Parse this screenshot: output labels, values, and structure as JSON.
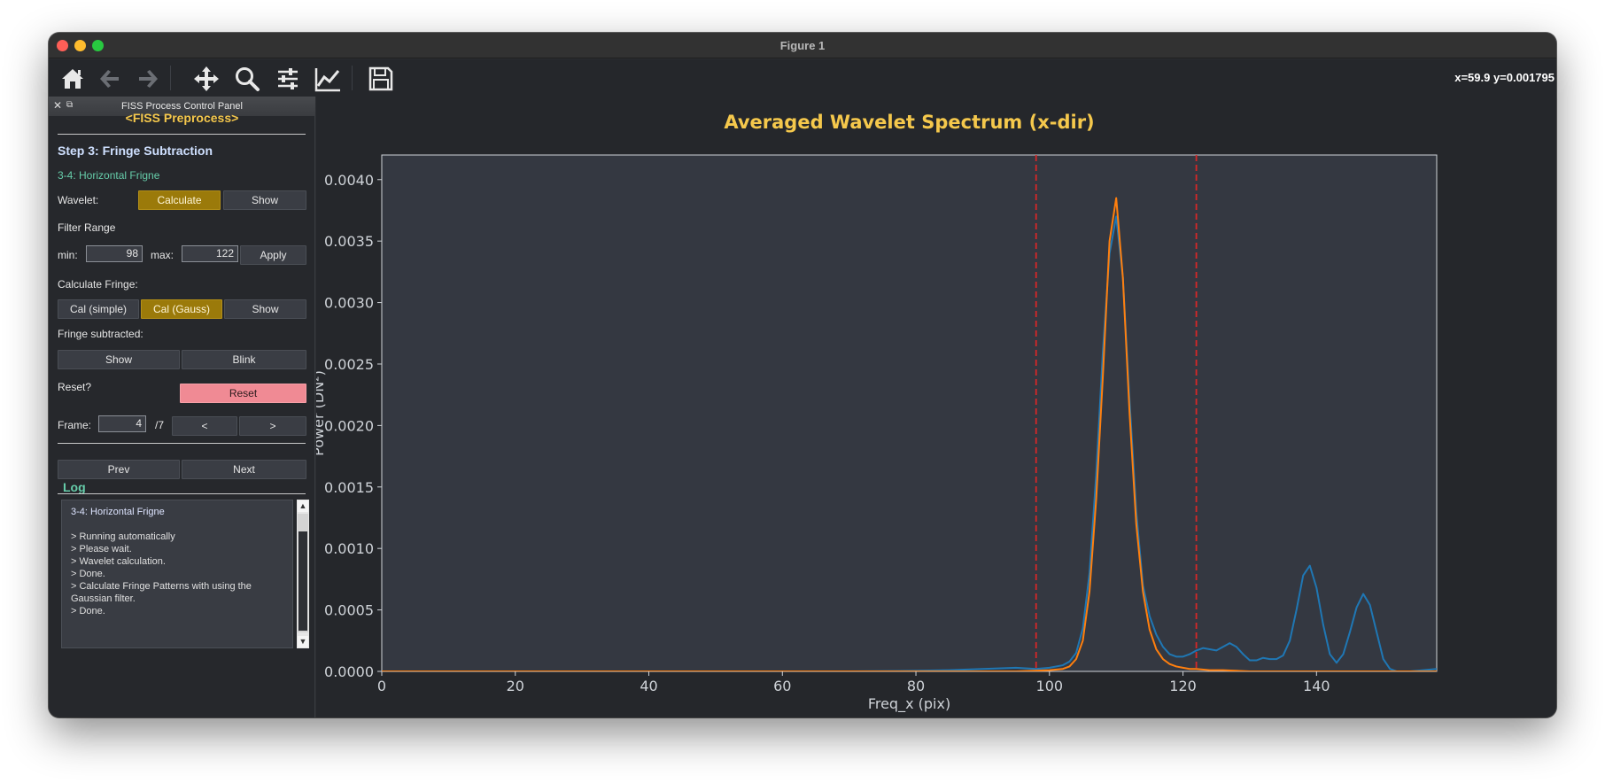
{
  "window": {
    "title": "Figure 1"
  },
  "toolbar": {
    "buttons": [
      {
        "id": "home",
        "icon": "home-icon"
      },
      {
        "id": "back",
        "icon": "arrow-left-icon"
      },
      {
        "id": "forward",
        "icon": "arrow-right-icon"
      },
      {
        "id": "pan",
        "icon": "move-icon"
      },
      {
        "id": "zoom",
        "icon": "search-icon"
      },
      {
        "id": "configure",
        "icon": "sliders-icon"
      },
      {
        "id": "edit",
        "icon": "line-chart-icon"
      },
      {
        "id": "save",
        "icon": "floppy-disk-icon"
      }
    ],
    "coords": "x=59.9 y=0.001795"
  },
  "panel": {
    "title": "FISS Process Control Panel",
    "close_glyph": "✕",
    "float_glyph": "⧉",
    "header": "<FISS Preprocess>",
    "step": "Step 3: Fringe Subtraction",
    "substep": "3-4: Horizontal Frigne",
    "wavelet_label": "Wavelet:",
    "wavelet_calculate": "Calculate",
    "wavelet_show": "Show",
    "filter_range_label": "Filter Range",
    "min_label": "min:",
    "min_value": "98",
    "max_label": "max:",
    "max_value": "122",
    "apply": "Apply",
    "calc_fringe_label": "Calculate Fringe:",
    "cal_simple": "Cal (simple)",
    "cal_gauss": "Cal (Gauss)",
    "fringe_show": "Show",
    "fringe_sub_label": "Fringe subtracted:",
    "sub_show": "Show",
    "sub_blink": "Blink",
    "reset_label": "Reset?",
    "reset": "Reset",
    "frame_label": "Frame:",
    "frame_value": "4",
    "frame_total": "/7",
    "frame_prev": "<",
    "frame_next": ">",
    "prev": "Prev",
    "next": "Next",
    "log_title": "Log",
    "log_lines": [
      "3-4: Horizontal Frigne",
      "",
      "> Running automatically",
      "> Please wait.",
      "> Wavelet calculation.",
      "> Done.",
      "> Calculate Fringe Patterns with using the Gaussian filter.",
      "> Done."
    ],
    "scroll_up": "▲",
    "scroll_down": "▼"
  },
  "colors": {
    "title": "#f5c84c",
    "series_blue": "#1f77b4",
    "series_orange": "#ff7f0e",
    "vline": "#d62728",
    "accent_green": "#66cdaa",
    "button_gold": "#9b7a0a",
    "button_pink": "#f08a94"
  },
  "chart_data": {
    "type": "line",
    "title": "Averaged Wavelet Spectrum (x-dir)",
    "xlabel": "Freq_x (pix)",
    "ylabel": "Power (DN²)",
    "xlim": [
      0,
      158
    ],
    "ylim": [
      0,
      0.0042
    ],
    "xticks": [
      0,
      20,
      40,
      60,
      80,
      100,
      120,
      140
    ],
    "yticks": [
      0.0,
      0.0005,
      0.001,
      0.0015,
      0.002,
      0.0025,
      0.003,
      0.0035,
      0.004
    ],
    "ytick_labels": [
      "0.0000",
      "0.0005",
      "0.0010",
      "0.0015",
      "0.0020",
      "0.0025",
      "0.0030",
      "0.0035",
      "0.0040"
    ],
    "vlines": [
      98,
      122
    ],
    "series": [
      {
        "color": "blue",
        "x": [
          0,
          70,
          80,
          85,
          90,
          95,
          98,
          100,
          102,
          103,
          104,
          105,
          106,
          107,
          108,
          109,
          110,
          111,
          112,
          113,
          114,
          115,
          116,
          117,
          118,
          119,
          120,
          121,
          122,
          123,
          124,
          125,
          126,
          127,
          128,
          129,
          130,
          131,
          132,
          133,
          134,
          135,
          136,
          137,
          138,
          139,
          140,
          141,
          142,
          143,
          144,
          145,
          146,
          147,
          148,
          149,
          150,
          151,
          152,
          154,
          156,
          158
        ],
        "y": [
          0.0,
          0.0,
          5e-06,
          1e-05,
          2e-05,
          3e-05,
          2e-05,
          3e-05,
          5e-05,
          8e-05,
          0.00015,
          0.00035,
          0.0008,
          0.0016,
          0.0026,
          0.0034,
          0.0037,
          0.0032,
          0.0022,
          0.0013,
          0.0007,
          0.00045,
          0.0003,
          0.0002,
          0.00014,
          0.00012,
          0.00012,
          0.00014,
          0.00017,
          0.00019,
          0.00018,
          0.00017,
          0.0002,
          0.00023,
          0.0002,
          0.00014,
          9e-05,
          9e-05,
          0.00011,
          0.0001,
          0.0001,
          0.00013,
          0.00025,
          0.0005,
          0.00078,
          0.00086,
          0.00068,
          0.00038,
          0.00014,
          7e-05,
          0.00014,
          0.00032,
          0.00052,
          0.00063,
          0.00054,
          0.00032,
          0.0001,
          2e-05,
          0.0,
          0.0,
          1e-05,
          2e-05
        ]
      },
      {
        "color": "orange",
        "x": [
          0,
          80,
          95,
          100,
          102,
          103,
          104,
          105,
          106,
          107,
          108,
          109,
          110,
          111,
          112,
          113,
          114,
          115,
          116,
          117,
          118,
          119,
          120,
          121,
          122,
          124,
          126,
          130,
          140,
          158
        ],
        "y": [
          0.0,
          0.0,
          0.0,
          1e-05,
          2e-05,
          4e-05,
          0.0001,
          0.00025,
          0.00065,
          0.0014,
          0.0024,
          0.0035,
          0.00385,
          0.0032,
          0.0021,
          0.0012,
          0.00065,
          0.00034,
          0.00018,
          0.0001,
          6e-05,
          4e-05,
          3e-05,
          2e-05,
          2e-05,
          1e-05,
          1e-05,
          0.0,
          0.0,
          0.0
        ]
      }
    ]
  }
}
